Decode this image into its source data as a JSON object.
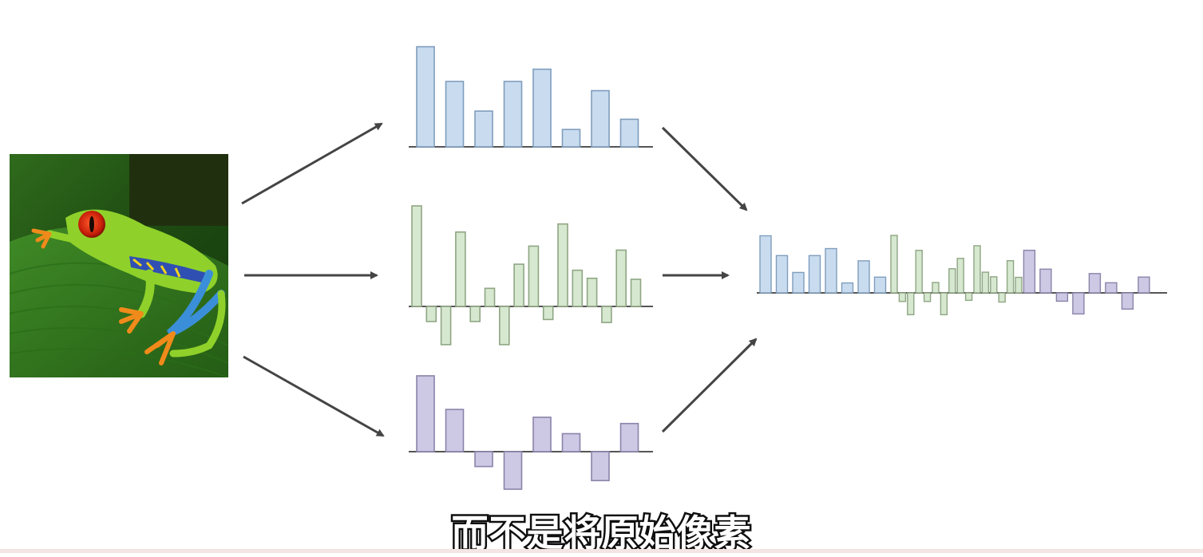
{
  "subtitle": "而不是将原始像素",
  "colors": {
    "blue_fill": "#c9dcef",
    "blue_stroke": "#7f9dbd",
    "green_fill": "#d6e8cf",
    "green_stroke": "#8fa684",
    "purple_fill": "#cdc8e3",
    "purple_stroke": "#8b83aa",
    "arrow": "#444444",
    "baseline": "#555555"
  },
  "histograms": {
    "blue": [
      0.98,
      0.64,
      0.35,
      0.64,
      0.76,
      0.17,
      0.55,
      0.27
    ],
    "green": [
      1.0,
      -0.15,
      -0.38,
      0.74,
      -0.15,
      0.18,
      -0.38,
      0.42,
      0.6,
      -0.13,
      0.82,
      0.36,
      0.28,
      -0.16,
      0.56,
      0.27
    ],
    "purple": [
      0.97,
      0.54,
      -0.19,
      -0.48,
      0.44,
      0.23,
      -0.37,
      0.36
    ]
  }
}
